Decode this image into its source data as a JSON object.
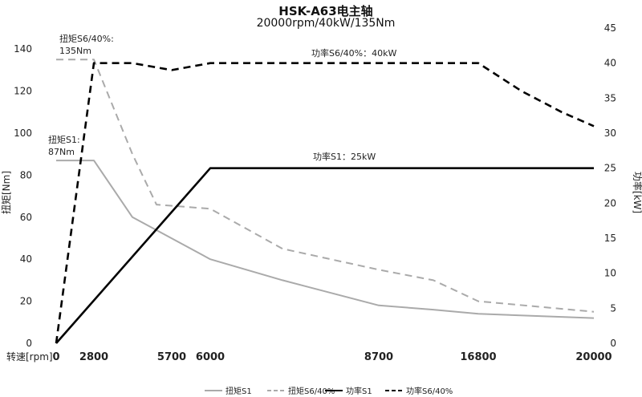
{
  "chart_data": {
    "type": "line",
    "title": "HSK-A63电主轴",
    "subtitle": "20000rpm/40kW/135Nm",
    "xlabel": "转速[rpm]",
    "ylabel_left": "扭矩[Nm]",
    "ylabel_right": "功率[kW]",
    "x_ticks": [
      "0",
      "2800",
      "5700",
      "6000",
      "8700",
      "16800",
      "20000"
    ],
    "y_left_ticks": [
      0,
      20,
      40,
      60,
      80,
      100,
      120,
      140
    ],
    "y_right_ticks": [
      0,
      5,
      10,
      15,
      20,
      25,
      30,
      35,
      40,
      45
    ],
    "ylim_left": [
      0,
      150
    ],
    "ylim_right": [
      0,
      45
    ],
    "grid": false,
    "legend_position": "bottom",
    "series": [
      {
        "name": "扭矩S1",
        "axis": "left",
        "color": "#aaaaaa",
        "style": "solid",
        "points": [
          [
            "0",
            87
          ],
          [
            "2800",
            87
          ],
          [
            "4100",
            60
          ],
          [
            "6000",
            40
          ],
          [
            "7400",
            30
          ],
          [
            "8700",
            18
          ],
          [
            "12000",
            16
          ],
          [
            "16800",
            14
          ],
          [
            "20000",
            12
          ]
        ]
      },
      {
        "name": "扭矩S6/40%",
        "axis": "left",
        "color": "#aaaaaa",
        "style": "dashed",
        "points": [
          [
            "0",
            135
          ],
          [
            "2800",
            135
          ],
          [
            "4100",
            90
          ],
          [
            "5000",
            66
          ],
          [
            "6000",
            64
          ],
          [
            "7400",
            45
          ],
          [
            "8700",
            35
          ],
          [
            "12000",
            30
          ],
          [
            "16800",
            20
          ],
          [
            "20000",
            15
          ]
        ]
      },
      {
        "name": "功率S1",
        "axis": "right",
        "color": "#000000",
        "style": "solid",
        "points": [
          [
            "0",
            0
          ],
          [
            "6000",
            25
          ],
          [
            "20000",
            25
          ]
        ]
      },
      {
        "name": "功率S6/40%",
        "axis": "right",
        "color": "#000000",
        "style": "dashed",
        "points": [
          [
            "0",
            0
          ],
          [
            "2800",
            40
          ],
          [
            "4100",
            40
          ],
          [
            "5700",
            39
          ],
          [
            "6000",
            40
          ],
          [
            "8700",
            40
          ],
          [
            "16800",
            40
          ],
          [
            "18000",
            36
          ],
          [
            "19200",
            33
          ],
          [
            "20000",
            31
          ]
        ]
      }
    ],
    "annotations": [
      {
        "id": "torque_s6",
        "lines": [
          "扭矩S6/40%:",
          "135Nm"
        ]
      },
      {
        "id": "torque_s1",
        "lines": [
          "扭矩S1:",
          "87Nm"
        ]
      },
      {
        "id": "power_s6",
        "lines": [
          "功率S6/40%：40kW"
        ]
      },
      {
        "id": "power_s1",
        "lines": [
          "功率S1：25kW"
        ]
      }
    ]
  }
}
